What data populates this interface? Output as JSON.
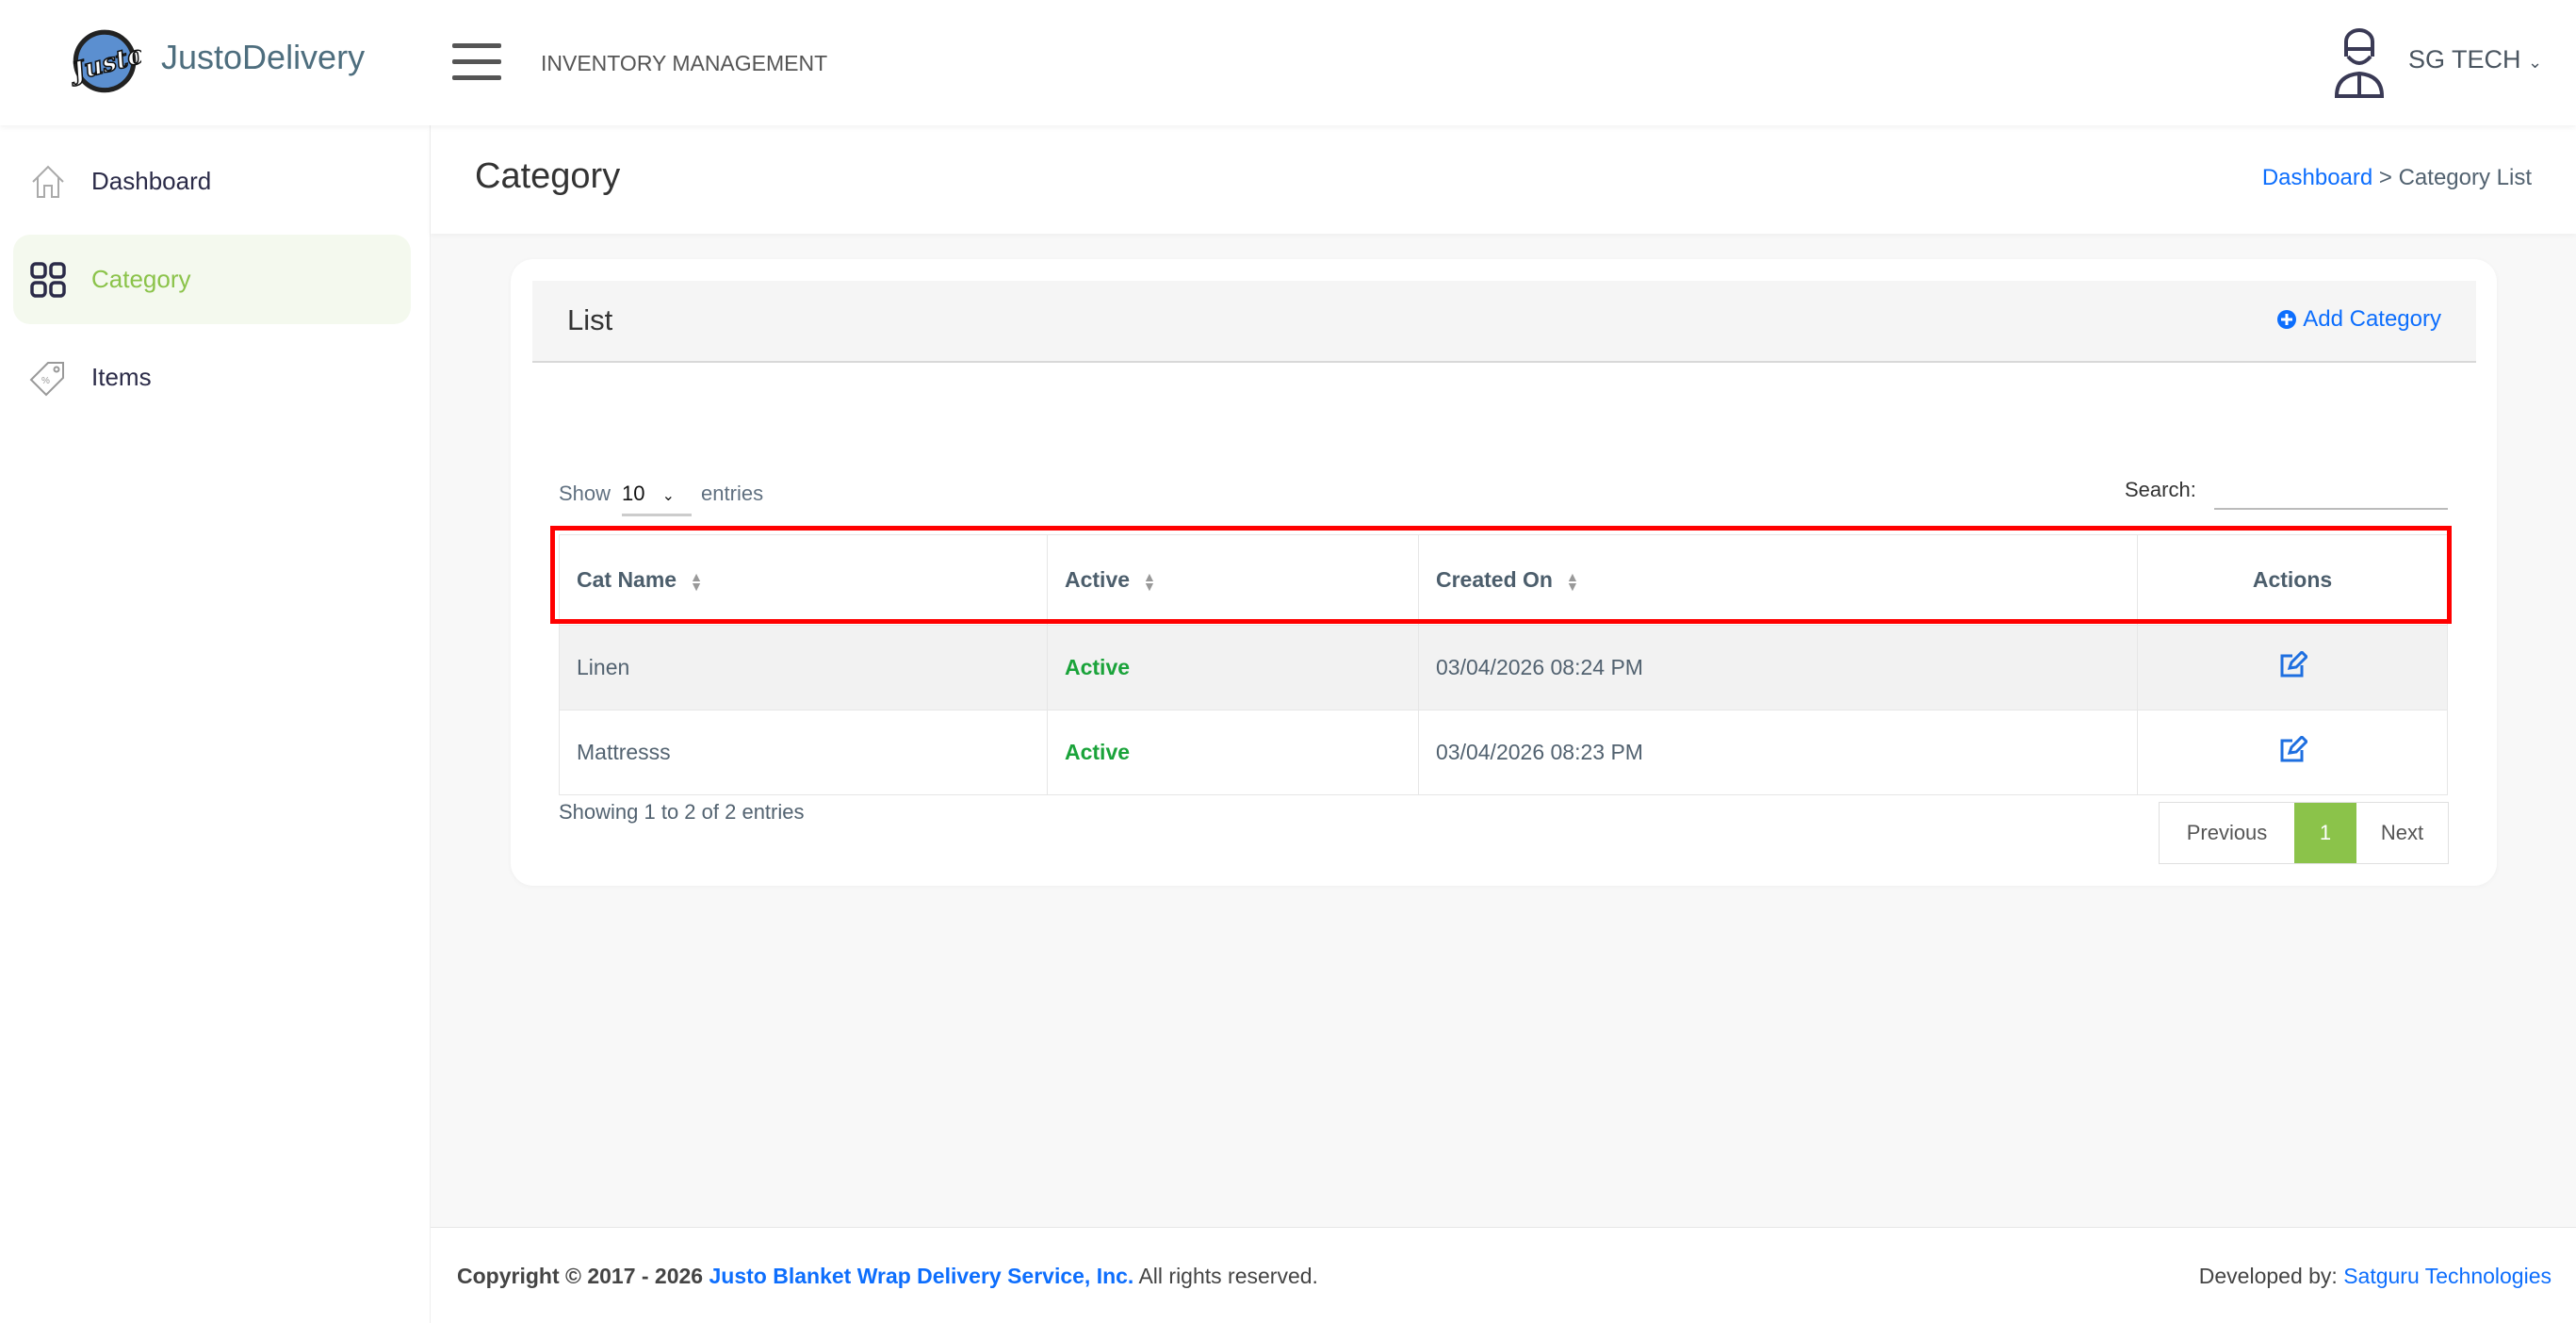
{
  "header": {
    "brand": "JustoDelivery",
    "logo_text": "Justo",
    "app_title": "INVENTORY MANAGEMENT",
    "user_name": "SG TECH"
  },
  "sidebar": {
    "items": [
      {
        "label": "Dashboard",
        "icon": "home-icon"
      },
      {
        "label": "Category",
        "icon": "grid-icon",
        "active": true
      },
      {
        "label": "Items",
        "icon": "tag-icon"
      }
    ]
  },
  "page": {
    "title": "Category",
    "breadcrumb": {
      "home": "Dashboard",
      "separator": " > ",
      "current": "Category List"
    }
  },
  "card": {
    "title": "List",
    "add_label": "Add Category"
  },
  "table_controls": {
    "show_label": "Show",
    "page_length": "10",
    "entries_label": "entries",
    "search_label": "Search:",
    "search_value": ""
  },
  "table": {
    "columns": [
      "Cat Name",
      "Active",
      "Created On",
      "Actions"
    ],
    "rows": [
      {
        "name": "Linen",
        "status": "Active",
        "created": "03/04/2026 08:24 PM"
      },
      {
        "name": "Mattresss",
        "status": "Active",
        "created": "03/04/2026 08:23 PM"
      }
    ]
  },
  "info": "Showing 1 to 2 of 2 entries",
  "pagination": {
    "previous": "Previous",
    "current": "1",
    "next": "Next"
  },
  "footer": {
    "copyright_prefix": "Copyright © 2017 - 2026",
    "company": "Justo Blanket Wrap Delivery Service, Inc.",
    "rights": "All rights reserved.",
    "developed_by": "Developed by:",
    "developer": "Satguru Technologies"
  },
  "colors": {
    "accent_green": "#8bc34a",
    "link_blue": "#0d6efd",
    "active_green": "#1aa33a",
    "highlight_red": "#ff0000"
  }
}
